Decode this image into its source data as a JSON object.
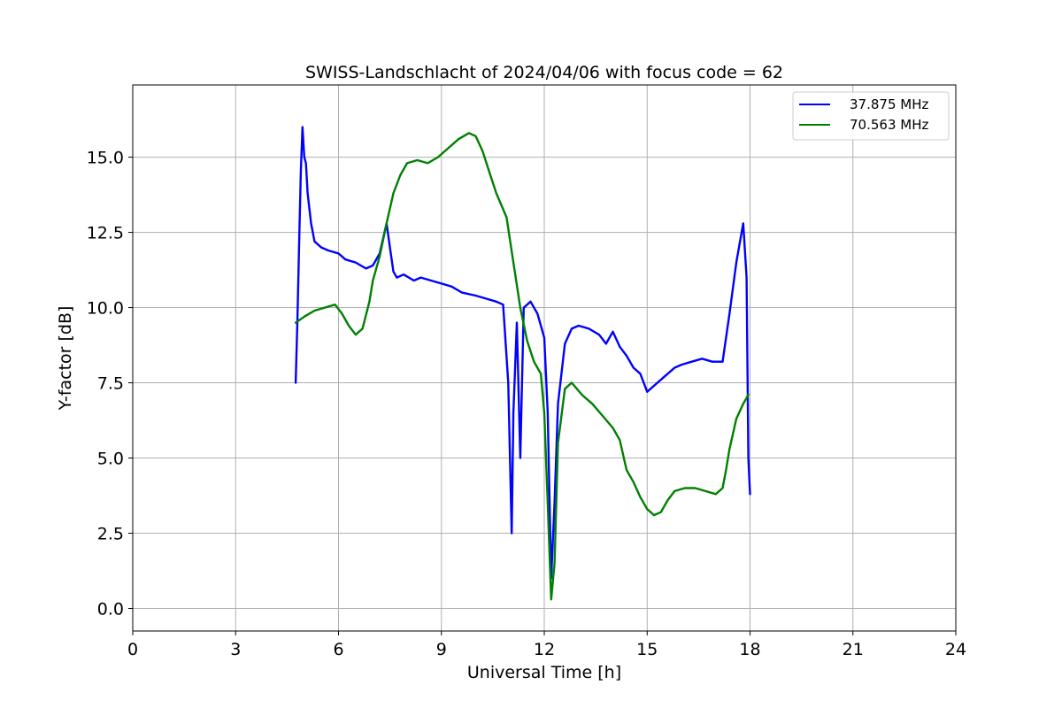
{
  "chart_data": {
    "type": "line",
    "title": "SWISS-Landschlacht of 2024/04/06 with focus code = 62",
    "xlabel": "Universal Time [h]",
    "ylabel": "Y-factor [dB]",
    "xlim": [
      0,
      24
    ],
    "ylim": [
      -0.75,
      17.4
    ],
    "xticks": [
      0,
      3,
      6,
      9,
      12,
      15,
      18,
      21,
      24
    ],
    "xtick_labels": [
      "0",
      "3",
      "6",
      "9",
      "12",
      "15",
      "18",
      "21",
      "24"
    ],
    "yticks": [
      0.0,
      2.5,
      5.0,
      7.5,
      10.0,
      12.5,
      15.0
    ],
    "ytick_labels": [
      "0.0",
      "2.5",
      "5.0",
      "7.5",
      "10.0",
      "12.5",
      "15.0"
    ],
    "grid": true,
    "legend_position": "top-right",
    "series": [
      {
        "name": "37.875 MHz",
        "color": "#0000ff",
        "x": [
          4.75,
          4.8,
          4.85,
          4.9,
          4.95,
          5.0,
          5.05,
          5.1,
          5.2,
          5.3,
          5.5,
          5.7,
          6.0,
          6.2,
          6.5,
          6.8,
          7.0,
          7.2,
          7.4,
          7.5,
          7.6,
          7.7,
          7.9,
          8.2,
          8.4,
          8.7,
          9.0,
          9.3,
          9.6,
          10.0,
          10.3,
          10.6,
          10.8,
          10.95,
          11.05,
          11.1,
          11.2,
          11.3,
          11.4,
          11.6,
          11.8,
          12.0,
          12.1,
          12.2,
          12.3,
          12.4,
          12.6,
          12.8,
          13.0,
          13.3,
          13.6,
          13.8,
          14.0,
          14.2,
          14.4,
          14.6,
          14.8,
          15.0,
          15.2,
          15.5,
          15.8,
          16.0,
          16.3,
          16.6,
          16.9,
          17.2,
          17.4,
          17.6,
          17.8,
          17.9,
          17.95,
          18.0
        ],
        "y": [
          7.5,
          9.5,
          12.0,
          14.5,
          16.0,
          15.0,
          14.8,
          13.8,
          12.8,
          12.2,
          12.0,
          11.9,
          11.8,
          11.6,
          11.5,
          11.3,
          11.4,
          11.8,
          12.8,
          12.0,
          11.2,
          11.0,
          11.1,
          10.9,
          11.0,
          10.9,
          10.8,
          10.7,
          10.5,
          10.4,
          10.3,
          10.2,
          10.1,
          7.5,
          2.5,
          6.5,
          9.5,
          5.0,
          10.0,
          10.2,
          9.8,
          9.0,
          6.5,
          1.0,
          3.5,
          6.8,
          8.8,
          9.3,
          9.4,
          9.3,
          9.1,
          8.8,
          9.2,
          8.7,
          8.4,
          8.0,
          7.8,
          7.2,
          7.4,
          7.7,
          8.0,
          8.1,
          8.2,
          8.3,
          8.2,
          8.2,
          9.8,
          11.5,
          12.8,
          11.0,
          5.0,
          3.8
        ]
      },
      {
        "name": "70.563 MHz",
        "color": "#008000",
        "x": [
          4.75,
          5.0,
          5.3,
          5.6,
          5.9,
          6.1,
          6.3,
          6.5,
          6.7,
          6.9,
          7.0,
          7.2,
          7.4,
          7.6,
          7.8,
          8.0,
          8.3,
          8.6,
          8.9,
          9.2,
          9.5,
          9.8,
          10.0,
          10.2,
          10.4,
          10.6,
          10.9,
          11.1,
          11.3,
          11.5,
          11.7,
          11.9,
          12.0,
          12.1,
          12.2,
          12.3,
          12.4,
          12.6,
          12.8,
          13.1,
          13.4,
          13.7,
          14.0,
          14.2,
          14.4,
          14.6,
          14.8,
          15.0,
          15.2,
          15.4,
          15.6,
          15.8,
          16.1,
          16.4,
          16.7,
          17.0,
          17.2,
          17.3,
          17.4,
          17.6,
          17.8,
          17.95
        ],
        "y": [
          9.5,
          9.7,
          9.9,
          10.0,
          10.1,
          9.8,
          9.4,
          9.1,
          9.3,
          10.2,
          10.9,
          11.7,
          12.8,
          13.8,
          14.4,
          14.8,
          14.9,
          14.8,
          15.0,
          15.3,
          15.6,
          15.8,
          15.7,
          15.2,
          14.5,
          13.8,
          13.0,
          11.5,
          10.0,
          8.9,
          8.2,
          7.8,
          6.5,
          3.5,
          0.3,
          1.5,
          5.5,
          7.3,
          7.5,
          7.1,
          6.8,
          6.4,
          6.0,
          5.6,
          4.6,
          4.2,
          3.7,
          3.3,
          3.1,
          3.2,
          3.6,
          3.9,
          4.0,
          4.0,
          3.9,
          3.8,
          4.0,
          4.6,
          5.3,
          6.3,
          6.8,
          7.1
        ]
      }
    ]
  }
}
